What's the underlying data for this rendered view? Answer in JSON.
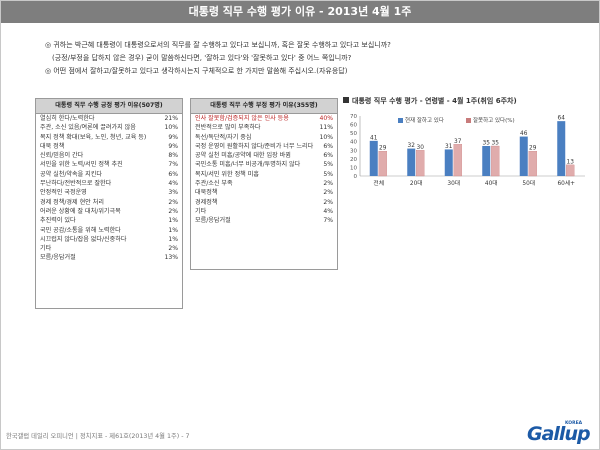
{
  "title": "대통령 직무 수행 평가 이유 - 2013년 4월 1주",
  "questions": [
    "◎ 귀하는 박근혜 대통령이 대통령으로서의 직무를 잘 수행하고 있다고 보십니까, 혹은 잘못 수행하고 있다고 보십니까?",
    "(긍정/부정을 답하지 않은 경우) 굳이 말씀하신다면, '잘하고 있다'와 '잘못하고 있다' 중 어느 쪽입니까?",
    "◎ 어떤 점에서 잘하고/잘못하고 있다고 생각하시는지 구체적으로 한 가지만 말씀해 주십시오.(자유응답)"
  ],
  "positive": {
    "header": "대통령 직무 수행 긍정 평가 이유(507명)",
    "rows": [
      {
        "label": "열심히 한다/노력한다",
        "value": "21%"
      },
      {
        "label": "주관, 소신 있음/여론에 끌려가지 않음",
        "value": "10%"
      },
      {
        "label": "복지 정책 확대(보육, 노인, 청년, 교육 등)",
        "value": "9%"
      },
      {
        "label": "대북 정책",
        "value": "9%"
      },
      {
        "label": "신뢰/믿음이 간다",
        "value": "8%"
      },
      {
        "label": "서민을 위한 노력/서민 정책 추진",
        "value": "7%"
      },
      {
        "label": "공약 실천/약속을 지킨다",
        "value": "6%"
      },
      {
        "label": "무난하다/전반적으로 잘한다",
        "value": "4%"
      },
      {
        "label": "안정적인 국정운영",
        "value": "3%"
      },
      {
        "label": "경제 정책/경제 현안 처리",
        "value": "2%"
      },
      {
        "label": "어려운 상황에 잘 대처/위기극복",
        "value": "2%"
      },
      {
        "label": "추진력이 있다",
        "value": "1%"
      },
      {
        "label": "국민 공감/소통을 위해 노력한다",
        "value": "1%"
      },
      {
        "label": "시끄럽지 않다/잡음 없다/신중하다",
        "value": "1%"
      },
      {
        "label": "기타",
        "value": "2%"
      },
      {
        "label": "모름/응답거절",
        "value": "13%"
      }
    ]
  },
  "negative": {
    "header": "대통령 직무 수행 부정 평가 이유(355명)",
    "rows": [
      {
        "label": "인사 잘못함/검증되지 않은 인사 등용",
        "value": "40%",
        "highlight": true
      },
      {
        "label": "전반적으로 많이 부족하다",
        "value": "11%"
      },
      {
        "label": "독선/독단적/자기 중심",
        "value": "10%"
      },
      {
        "label": "국정 운영이 원활하지 않다/준비가 너무 느리다",
        "value": "6%"
      },
      {
        "label": "공약 실천 미흡/공약에 대한 입장 바뀜",
        "value": "6%"
      },
      {
        "label": "국민소통 미흡/너무 비공개/투명하지 않다",
        "value": "5%"
      },
      {
        "label": "복지/서민 위한 정책 미흡",
        "value": "5%"
      },
      {
        "label": "주관/소신 부족",
        "value": "2%"
      },
      {
        "label": "대북정책",
        "value": "2%"
      },
      {
        "label": "경제정책",
        "value": "2%"
      },
      {
        "label": "기타",
        "value": "4%"
      },
      {
        "label": "모름/응답거절",
        "value": "7%"
      }
    ]
  },
  "chart_title": "대통령 직무 수행 평가 - 연령별 - 4월 1주(취임 6주차)",
  "chart_data": {
    "type": "bar",
    "categories": [
      "전체",
      "20대",
      "30대",
      "40대",
      "50대",
      "60세+"
    ],
    "series": [
      {
        "name": "현재 잘하고 있다",
        "values": [
          41,
          32,
          31,
          35,
          46,
          64
        ],
        "color": "#4a7fc1"
      },
      {
        "name": "잘못하고 있다(%)",
        "values": [
          29,
          30,
          37,
          35,
          29,
          13
        ],
        "color": "#c87b7b"
      }
    ],
    "ylim": [
      0,
      70
    ],
    "yticks": [
      0,
      10,
      20,
      30,
      40,
      50,
      60,
      70
    ],
    "legend": "top",
    "grid": false
  },
  "footer": "한국갤럽 데일리 오피니언 | 정치지표 - 제61호(2013년 4월 1주) - 7",
  "logo": "Gallup",
  "logo_small": "KOREA"
}
